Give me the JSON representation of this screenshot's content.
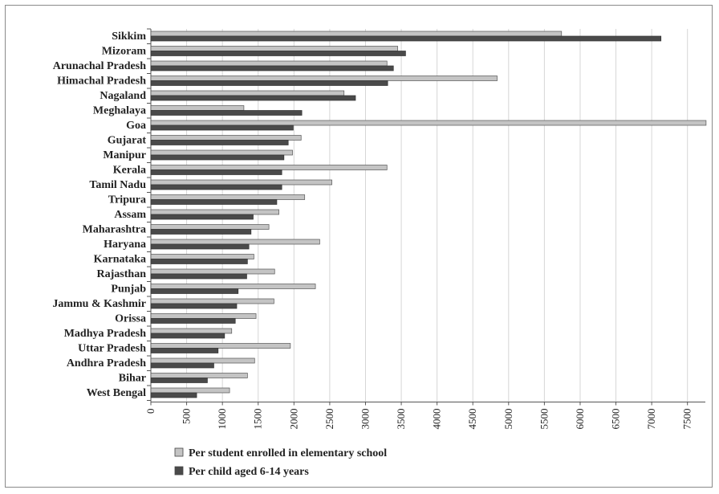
{
  "chart_data": {
    "type": "bar",
    "orientation": "horizontal",
    "categories": [
      "Sikkim",
      "Mizoram",
      "Arunachal Pradesh",
      "Himachal Pradesh",
      "Nagaland",
      "Meghalaya",
      "Goa",
      "Gujarat",
      "Manipur",
      "Kerala",
      "Tamil Nadu",
      "Tripura",
      "Assam",
      "Maharashtra",
      "Haryana",
      "Karnataka",
      "Rajasthan",
      "Punjab",
      "Jammu & Kashmir",
      "Orissa",
      "Madhya Pradesh",
      "Uttar Pradesh",
      "Andhra Pradesh",
      "Bihar",
      "West Bengal"
    ],
    "series": [
      {
        "name": "Per student enrolled in elementary school",
        "color": "#c4c4c4",
        "values": [
          5740,
          3450,
          3300,
          4840,
          2700,
          1300,
          7760,
          2100,
          1980,
          3300,
          2530,
          2150,
          1790,
          1650,
          2360,
          1440,
          1730,
          2300,
          1720,
          1470,
          1130,
          1950,
          1450,
          1350,
          1100
        ]
      },
      {
        "name": "Per child aged 6-14 years",
        "color": "#4a4a4a",
        "values": [
          7130,
          3560,
          3390,
          3310,
          2860,
          2110,
          1990,
          1920,
          1860,
          1830,
          1830,
          1760,
          1430,
          1400,
          1370,
          1350,
          1340,
          1220,
          1200,
          1180,
          1030,
          940,
          880,
          790,
          640
        ]
      }
    ],
    "xlim": [
      0,
      7750
    ],
    "xticks": [
      "0",
      "500",
      "1000",
      "1500",
      "2000",
      "2500",
      "3000",
      "3500",
      "4000",
      "4500",
      "5000",
      "5500",
      "6000",
      "6500",
      "7000",
      "7500"
    ],
    "grid": true,
    "legend_position": "bottom-left"
  }
}
